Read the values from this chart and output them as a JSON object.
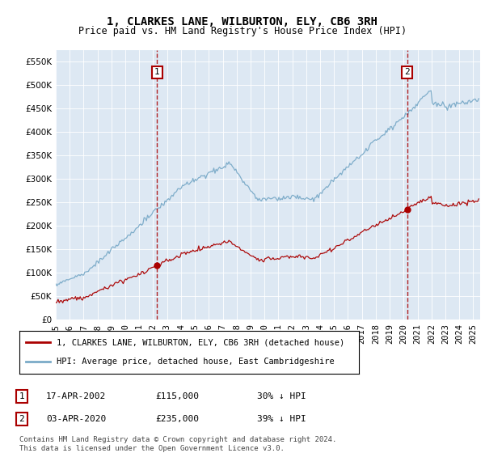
{
  "title": "1, CLARKES LANE, WILBURTON, ELY, CB6 3RH",
  "subtitle": "Price paid vs. HM Land Registry's House Price Index (HPI)",
  "legend_line1": "1, CLARKES LANE, WILBURTON, ELY, CB6 3RH (detached house)",
  "legend_line2": "HPI: Average price, detached house, East Cambridgeshire",
  "sale1_date": "17-APR-2002",
  "sale1_price": 115000,
  "sale1_label": "30% ↓ HPI",
  "sale2_date": "03-APR-2020",
  "sale2_price": 235000,
  "sale2_label": "39% ↓ HPI",
  "footnote1": "Contains HM Land Registry data © Crown copyright and database right 2024.",
  "footnote2": "This data is licensed under the Open Government Licence v3.0.",
  "red_color": "#aa0000",
  "blue_color": "#7aaac8",
  "bg_color": "#dde8f3",
  "ylim": [
    0,
    575000
  ],
  "yticks": [
    0,
    50000,
    100000,
    150000,
    200000,
    250000,
    300000,
    350000,
    400000,
    450000,
    500000,
    550000
  ],
  "sale1_x": 2002.29,
  "sale2_x": 2020.25
}
